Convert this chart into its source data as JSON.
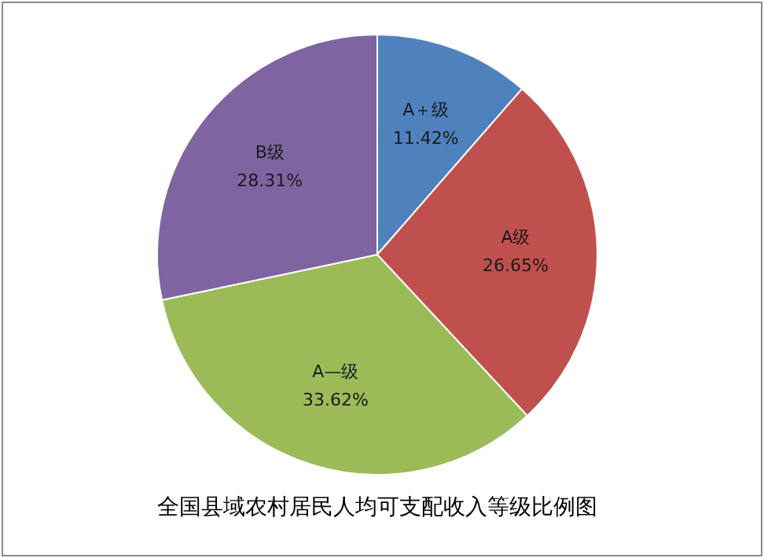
{
  "chart_data": {
    "type": "pie",
    "title": "全国县域农村居民人均可支配收入等级比例图",
    "categories": [
      "A＋级",
      "A级",
      "A—级",
      "B级"
    ],
    "values": [
      11.42,
      26.65,
      33.62,
      28.31
    ],
    "value_labels": [
      "11.42%",
      "26.65%",
      "33.62%",
      "28.31%"
    ],
    "colors": [
      "#4f81bd",
      "#c0504d",
      "#9bbb59",
      "#8064a2"
    ]
  }
}
